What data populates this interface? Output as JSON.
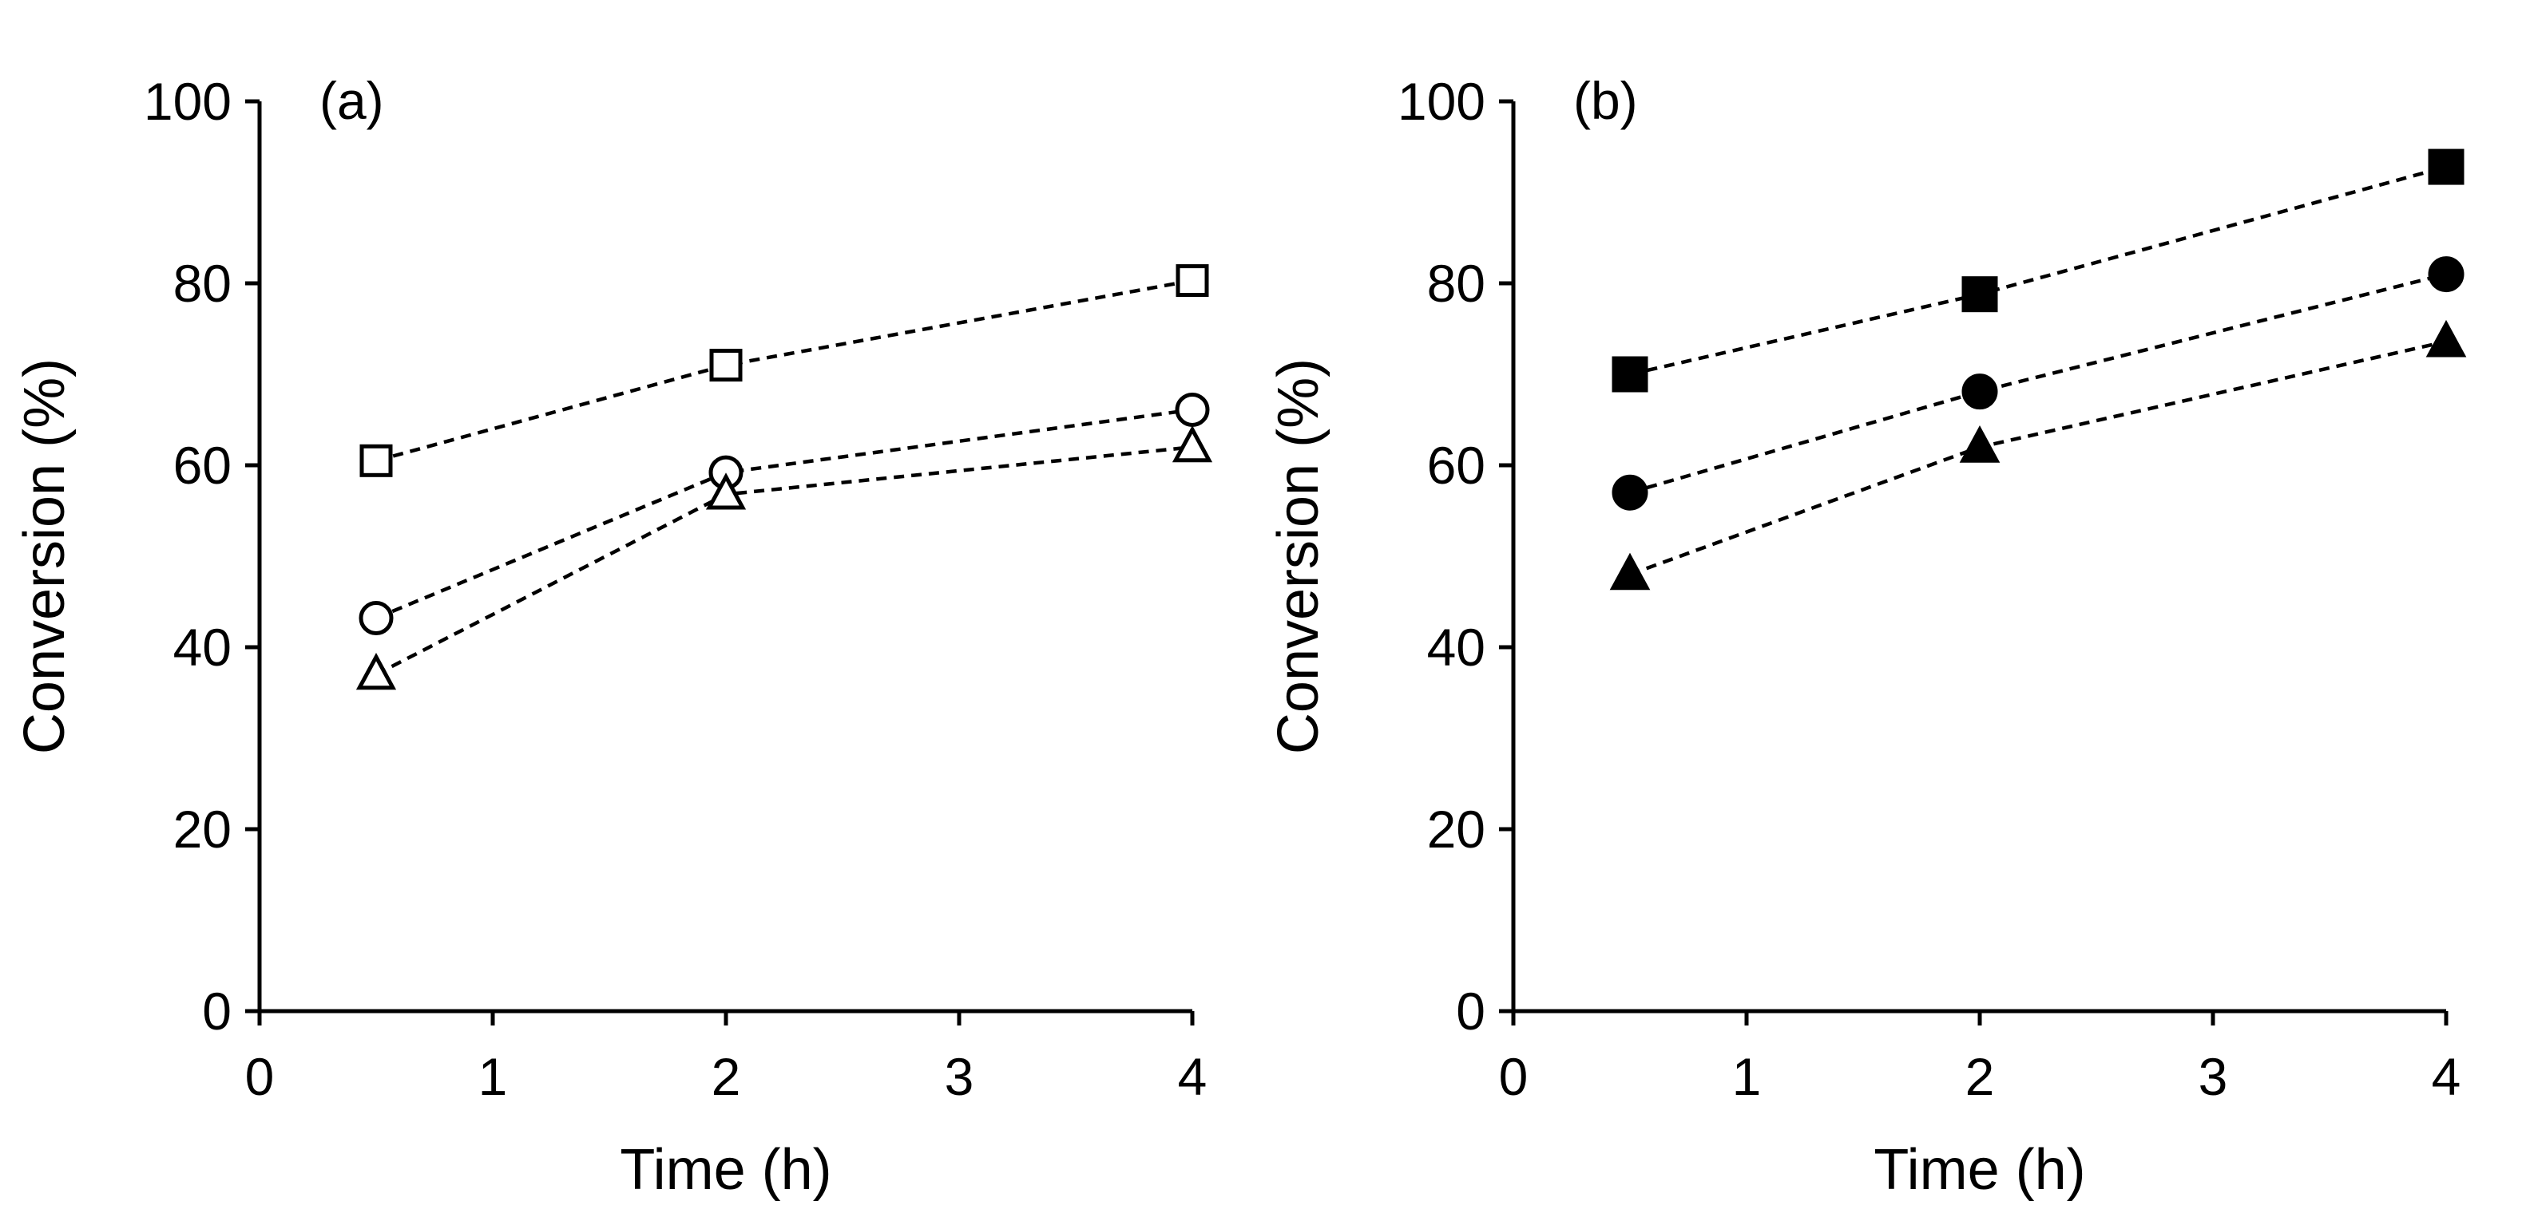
{
  "chart_data": [
    {
      "type": "line",
      "panel_label": "(a)",
      "xlabel": "Time (h)",
      "ylabel": "Conversion (%)",
      "xlim": [
        0,
        4
      ],
      "ylim": [
        0,
        100
      ],
      "xticks": [
        "0",
        "1",
        "2",
        "3",
        "4"
      ],
      "yticks": [
        "0",
        "20",
        "40",
        "60",
        "80",
        "100"
      ],
      "line_style": "dashed",
      "series": [
        {
          "name": "open square",
          "marker": "square",
          "filled": false,
          "x": [
            0.5,
            2,
            4
          ],
          "y": [
            60.5,
            71,
            80.3
          ]
        },
        {
          "name": "open circle",
          "marker": "circle",
          "filled": false,
          "x": [
            0.5,
            2,
            4
          ],
          "y": [
            43.2,
            59.2,
            66.1
          ]
        },
        {
          "name": "open triangle",
          "marker": "triangle",
          "filled": false,
          "x": [
            0.5,
            2,
            4
          ],
          "y": [
            37,
            56.8,
            62
          ]
        }
      ]
    },
    {
      "type": "line",
      "panel_label": "(b)",
      "xlabel": "Time (h)",
      "ylabel": "Conversion (%)",
      "xlim": [
        0,
        4
      ],
      "ylim": [
        0,
        100
      ],
      "xticks": [
        "0",
        "1",
        "2",
        "3",
        "4"
      ],
      "yticks": [
        "0",
        "20",
        "40",
        "60",
        "80",
        "100"
      ],
      "line_style": "dashed",
      "series": [
        {
          "name": "filled square",
          "marker": "square",
          "filled": true,
          "x": [
            0.5,
            2,
            4
          ],
          "y": [
            70,
            78.8,
            92.8
          ]
        },
        {
          "name": "filled circle",
          "marker": "circle",
          "filled": true,
          "x": [
            0.5,
            2,
            4
          ],
          "y": [
            57,
            68.1,
            81
          ]
        },
        {
          "name": "filled triangle",
          "marker": "triangle",
          "filled": true,
          "x": [
            0.5,
            2,
            4
          ],
          "y": [
            48,
            62,
            73.6
          ]
        }
      ]
    }
  ]
}
